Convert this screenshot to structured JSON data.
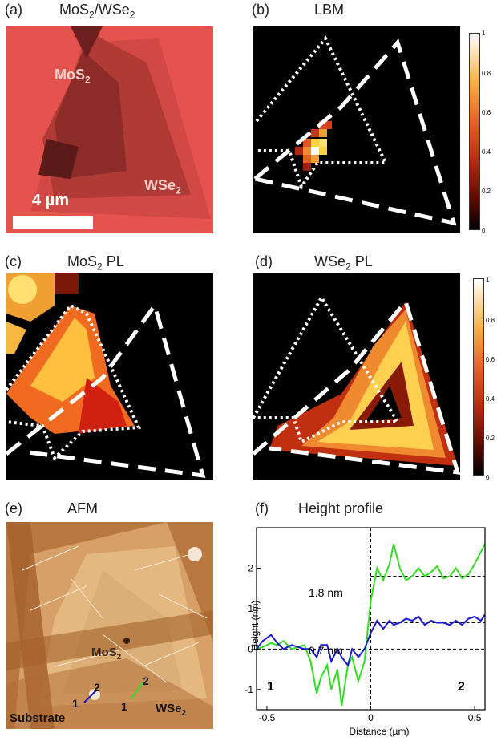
{
  "panels": {
    "a": {
      "tag": "(a)",
      "title_main": "MoS",
      "title_sub1": "2",
      "title_mid": "/WSe",
      "title_sub2": "2",
      "lab_mos": "MoS",
      "lab_mos_sub": "2",
      "lab_wse": "WSe",
      "lab_wse_sub": "2",
      "scale": "4 µm"
    },
    "b": {
      "tag": "(b)",
      "title": "LBM"
    },
    "c": {
      "tag": "(c)",
      "title_main": "MoS",
      "title_sub": "2",
      "title_rest": " PL"
    },
    "d": {
      "tag": "(d)",
      "title_main": "WSe",
      "title_sub": "2",
      "title_rest": " PL"
    },
    "e": {
      "tag": "(e)",
      "title": "AFM",
      "lab_mos": "MoS",
      "lab_mos_sub": "2",
      "lab_wse": "WSe",
      "lab_wse_sub": "2",
      "lab_substrate": "Substrate",
      "m1a": "1",
      "m2a": "2",
      "m1b": "1",
      "m2b": "2"
    },
    "f": {
      "tag": "(f)",
      "title": "Height profile"
    }
  },
  "colorbar_b": {
    "ticks": [
      "0",
      "0.2",
      "0.4",
      "0.6",
      "0.8",
      "1"
    ]
  },
  "colorbar_d": {
    "ticks": [
      "0",
      "0.2",
      "0.4",
      "0.6",
      "0.8",
      "1"
    ]
  },
  "colors": {
    "green": "#33dd22",
    "blue": "#1a1acc",
    "bg_pink": "#e8554f"
  },
  "chart_data": {
    "type": "line",
    "title": "Height profile",
    "xlabel": "Distance (µm)",
    "ylabel": "Height (nm)",
    "xlim": [
      -0.55,
      0.55
    ],
    "ylim": [
      -1.5,
      3.0
    ],
    "xticks": [
      "-0.5",
      "0",
      "0.5"
    ],
    "yticks": [
      "-1",
      "0",
      "1",
      "2"
    ],
    "annotations": [
      "1.8 nm",
      "0.7 nm"
    ],
    "endpoint_labels": [
      "1",
      "2"
    ],
    "reference_lines": [
      0,
      0.65,
      1.8
    ],
    "series": [
      {
        "color": "green",
        "x": [
          -0.55,
          -0.52,
          -0.48,
          -0.45,
          -0.42,
          -0.38,
          -0.35,
          -0.32,
          -0.29,
          -0.26,
          -0.24,
          -0.21,
          -0.19,
          -0.16,
          -0.14,
          -0.11,
          -0.09,
          -0.06,
          -0.03,
          0.0,
          0.03,
          0.06,
          0.09,
          0.11,
          0.14,
          0.17,
          0.2,
          0.23,
          0.26,
          0.29,
          0.32,
          0.35,
          0.38,
          0.41,
          0.44,
          0.47,
          0.5,
          0.53,
          0.55
        ],
        "y": [
          0.0,
          0.05,
          0.15,
          0.1,
          0.2,
          0.0,
          0.05,
          0.1,
          -0.3,
          -1.1,
          -0.7,
          -0.4,
          -1.0,
          -0.5,
          -1.4,
          -0.4,
          -0.2,
          -0.8,
          -0.3,
          1.2,
          2.0,
          1.7,
          2.1,
          2.6,
          2.0,
          1.7,
          1.8,
          2.0,
          1.8,
          1.9,
          2.05,
          1.75,
          1.8,
          2.0,
          1.75,
          1.85,
          2.1,
          2.4,
          2.6
        ]
      },
      {
        "color": "blue",
        "x": [
          -0.55,
          -0.52,
          -0.48,
          -0.45,
          -0.42,
          -0.38,
          -0.35,
          -0.32,
          -0.29,
          -0.26,
          -0.24,
          -0.21,
          -0.19,
          -0.16,
          -0.14,
          -0.11,
          -0.09,
          -0.06,
          -0.03,
          0.0,
          0.03,
          0.06,
          0.09,
          0.11,
          0.14,
          0.17,
          0.2,
          0.23,
          0.26,
          0.29,
          0.32,
          0.35,
          0.38,
          0.41,
          0.44,
          0.47,
          0.5,
          0.53,
          0.55
        ],
        "y": [
          0.0,
          0.2,
          0.35,
          0.15,
          0.0,
          0.1,
          0.05,
          0.0,
          0.0,
          -0.2,
          0.1,
          0.1,
          -0.3,
          0.0,
          -0.2,
          -0.4,
          0.0,
          -0.2,
          0.0,
          0.4,
          0.7,
          0.5,
          0.7,
          0.6,
          0.65,
          0.75,
          0.7,
          0.8,
          0.6,
          0.7,
          0.65,
          0.65,
          0.6,
          0.7,
          0.6,
          0.75,
          0.8,
          0.7,
          0.85
        ]
      }
    ]
  }
}
